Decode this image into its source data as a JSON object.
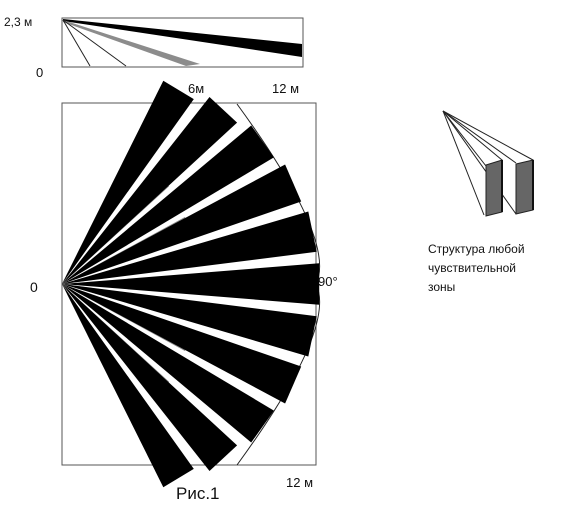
{
  "side_view": {
    "height_label": "2,3 м",
    "origin_label": "0",
    "mid_label": "6м",
    "far_label": "12 м"
  },
  "top_view": {
    "origin_label": "0",
    "angle_label": "90°",
    "range_label": "12 м",
    "zone_count": 11,
    "long_zone_count": 2
  },
  "zone_structure": {
    "lines": [
      "Структура любой",
      "чувствительной",
      "зоны"
    ]
  },
  "caption": "Рис.1",
  "colors": {
    "beam": "#000000",
    "short_beam": "#8c8c8c",
    "line": "#222222"
  }
}
